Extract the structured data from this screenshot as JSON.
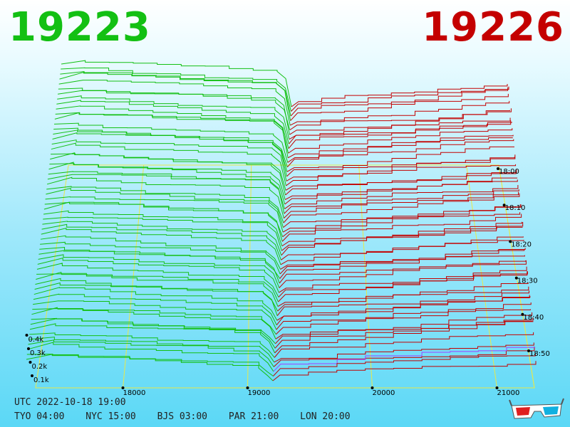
{
  "header": {
    "bid_price": "19223",
    "ask_price": "19226",
    "bid_color": "#13c013",
    "ask_color": "#c40000"
  },
  "footer": {
    "utc": "UTC 2022-10-18 19:00",
    "zones": [
      {
        "label": "TYO 04:00"
      },
      {
        "label": "NYC 15:00"
      },
      {
        "label": "BJS 03:00"
      },
      {
        "label": "PAR 21:00"
      },
      {
        "label": "LON 20:00"
      }
    ]
  },
  "chart_data": {
    "type": "area",
    "x": {
      "ticks": [
        18000,
        19000,
        20000,
        21000
      ],
      "labels": [
        "18000",
        "19000",
        "20000",
        "21000"
      ],
      "range": [
        17300,
        21300
      ]
    },
    "y": {
      "ticks": [
        100,
        200,
        300,
        400
      ],
      "labels": [
        "0.1k",
        "0.2k",
        "0.3k",
        "0.4k"
      ],
      "range": [
        0,
        560
      ]
    },
    "time_axis": {
      "labels": [
        "18:00",
        "18:10",
        "18:20",
        "18:30",
        "18:40",
        "18:50"
      ]
    },
    "series": [
      {
        "side": "bid",
        "color": "#13c013"
      },
      {
        "side": "ask",
        "color": "#c40000"
      }
    ],
    "latest_ask_color": "#a040ff",
    "grid": true
  },
  "icons": {
    "glasses": "3d-glasses-icon"
  }
}
